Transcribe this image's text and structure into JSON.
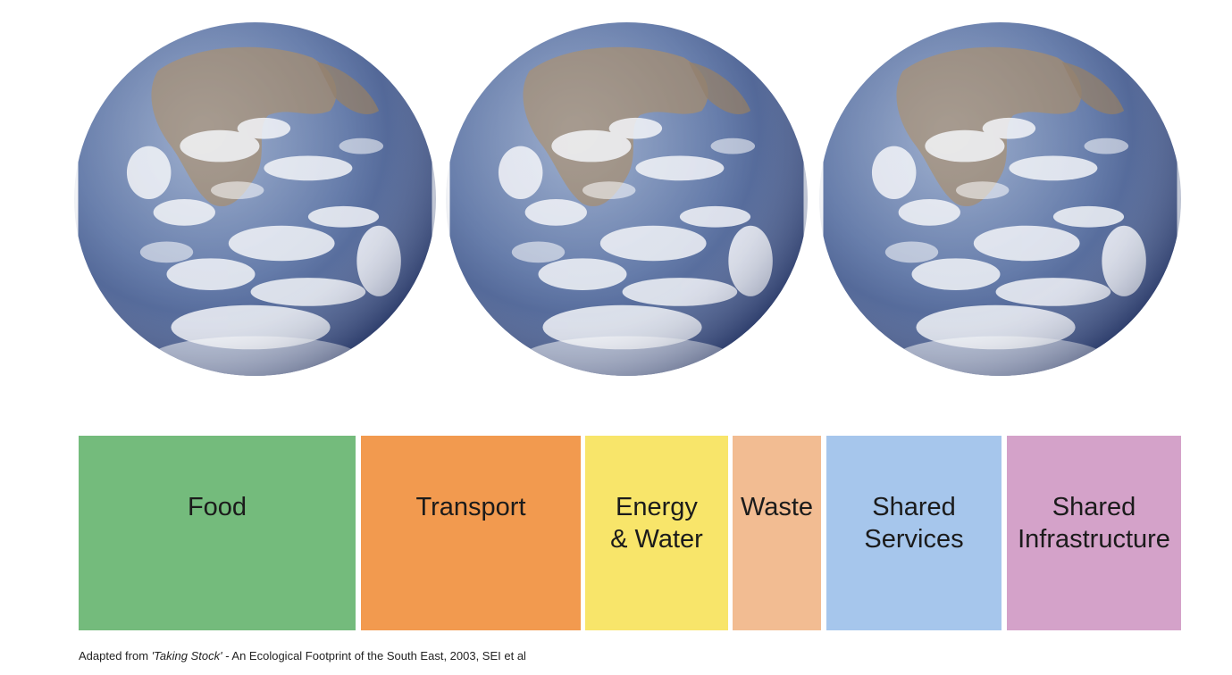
{
  "globes": [
    {
      "icon": "earth-globe-icon"
    },
    {
      "icon": "earth-globe-icon"
    },
    {
      "icon": "earth-globe-icon"
    }
  ],
  "categories": [
    {
      "label": "Food",
      "color": "#74bb7c"
    },
    {
      "label": "Transport",
      "color": "#f29a4f"
    },
    {
      "label": "Energy\n& Water",
      "color": "#f8e56a"
    },
    {
      "label": "Waste",
      "color": "#f2bc92"
    },
    {
      "label": "Shared\nServices",
      "color": "#a6c6ec"
    },
    {
      "label": "Shared\nInfrastructure",
      "color": "#d4a2c9"
    }
  ],
  "source": {
    "prefix": "Adapted from ",
    "title": "'Taking Stock'",
    "suffix": " - An Ecological Footprint of the South East, 2003, SEI et al"
  }
}
